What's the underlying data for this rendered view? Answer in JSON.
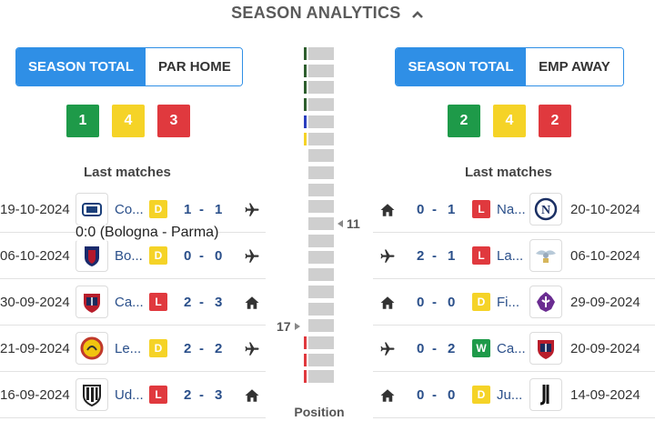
{
  "header": {
    "title": "SEASON ANALYTICS",
    "chevron_icon": "chevron-up-icon"
  },
  "colors": {
    "accent": "#2f8fe6",
    "win": "#1e9a49",
    "draw": "#f5d327",
    "loss": "#e0393e",
    "bar_gray": "#cfcfcf",
    "mark_dark_green": "#2e5e2e",
    "mark_blue": "#2b3fbf",
    "mark_yellow": "#f5d327",
    "mark_red": "#e0393e"
  },
  "left": {
    "tabs": [
      {
        "label": "SEASON TOTAL",
        "active": true
      },
      {
        "label": "PAR HOME",
        "active": false
      }
    ],
    "counts": {
      "win": "1",
      "draw": "4",
      "loss": "3"
    },
    "last_matches_label": "Last matches",
    "matches": [
      {
        "date": "19-10-2024",
        "team": "Co...",
        "result": "D",
        "score_home": "1",
        "score_sep": "-",
        "score_away": "1",
        "venue_icon": "plane-icon",
        "logo": "como-logo"
      },
      {
        "date": "06-10-2024",
        "team": "Bo...",
        "result": "D",
        "score_home": "0",
        "score_sep": "-",
        "score_away": "0",
        "venue_icon": "plane-icon",
        "logo": "bologna-logo"
      },
      {
        "date": "30-09-2024",
        "team": "Ca...",
        "result": "L",
        "score_home": "2",
        "score_sep": "-",
        "score_away": "3",
        "venue_icon": "home-icon",
        "logo": "cagliari-logo"
      },
      {
        "date": "21-09-2024",
        "team": "Le...",
        "result": "D",
        "score_home": "2",
        "score_sep": "-",
        "score_away": "2",
        "venue_icon": "plane-icon",
        "logo": "lecce-logo"
      },
      {
        "date": "16-09-2024",
        "team": "Ud...",
        "result": "L",
        "score_home": "2",
        "score_sep": "-",
        "score_away": "3",
        "venue_icon": "home-icon",
        "logo": "udinese-logo"
      }
    ],
    "tooltip": "0:0 (Bologna - Parma)"
  },
  "right": {
    "tabs": [
      {
        "label": "SEASON TOTAL",
        "active": true
      },
      {
        "label": "EMP AWAY",
        "active": false
      }
    ],
    "counts": {
      "win": "2",
      "draw": "4",
      "loss": "2"
    },
    "last_matches_label": "Last matches",
    "matches": [
      {
        "date": "20-10-2024",
        "team": "Na...",
        "result": "L",
        "score_home": "0",
        "score_sep": "-",
        "score_away": "1",
        "venue_icon": "home-icon",
        "logo": "napoli-logo"
      },
      {
        "date": "06-10-2024",
        "team": "La...",
        "result": "L",
        "score_home": "2",
        "score_sep": "-",
        "score_away": "1",
        "venue_icon": "plane-icon",
        "logo": "lazio-logo"
      },
      {
        "date": "29-09-2024",
        "team": "Fi...",
        "result": "D",
        "score_home": "0",
        "score_sep": "-",
        "score_away": "0",
        "venue_icon": "home-icon",
        "logo": "fiorentina-logo"
      },
      {
        "date": "20-09-2024",
        "team": "Ca...",
        "result": "W",
        "score_home": "0",
        "score_sep": "-",
        "score_away": "2",
        "venue_icon": "plane-icon",
        "logo": "cagliari-logo"
      },
      {
        "date": "14-09-2024",
        "team": "Ju...",
        "result": "D",
        "score_home": "0",
        "score_sep": "-",
        "score_away": "0",
        "venue_icon": "home-icon",
        "logo": "juventus-logo"
      }
    ]
  },
  "standings_bar": {
    "label": "Position",
    "total_positions": 20,
    "home_position": "17",
    "away_position": "11",
    "marks": [
      "dark_green",
      "dark_green",
      "dark_green",
      "dark_green",
      "blue",
      "yellow",
      "none",
      "none",
      "none",
      "none",
      "none",
      "none",
      "none",
      "none",
      "none",
      "none",
      "none",
      "red",
      "red",
      "red"
    ]
  }
}
